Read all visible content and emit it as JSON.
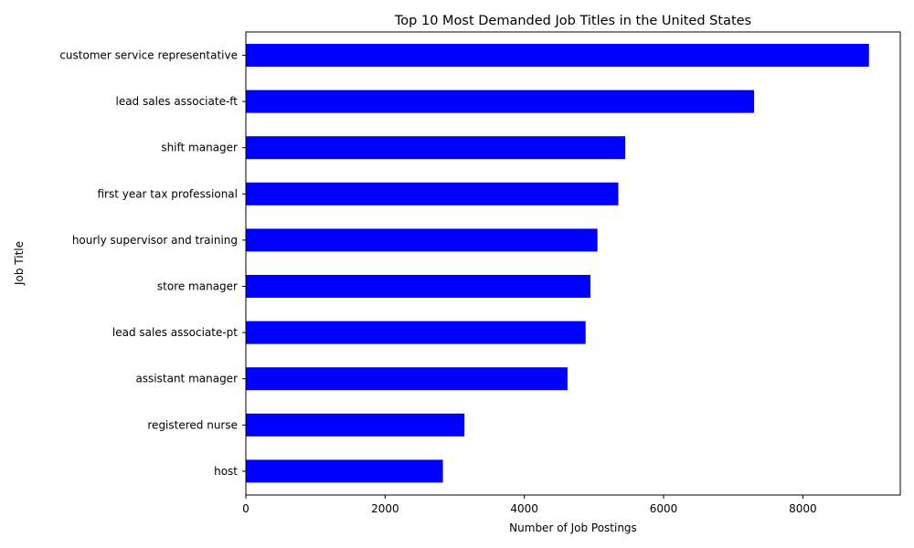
{
  "chart_data": {
    "type": "bar",
    "orientation": "horizontal",
    "title": "Top 10 Most Demanded Job Titles in the United States",
    "xlabel": "Number of Job Postings",
    "ylabel": "Job Title",
    "categories": [
      "customer service representative",
      "lead sales associate-ft",
      "shift manager",
      "first year tax professional",
      "hourly supervisor and training",
      "store manager",
      "lead sales associate-pt",
      "assistant manager",
      "registered nurse",
      "host"
    ],
    "values": [
      8950,
      7300,
      5450,
      5350,
      5050,
      4950,
      4880,
      4620,
      3140,
      2830
    ],
    "xlim": [
      0,
      9400
    ],
    "xticks": [
      0,
      2000,
      4000,
      6000,
      8000
    ],
    "xtick_labels": [
      "0",
      "2000",
      "4000",
      "6000",
      "8000"
    ],
    "bar_color": "#0000ff",
    "grid": false
  }
}
